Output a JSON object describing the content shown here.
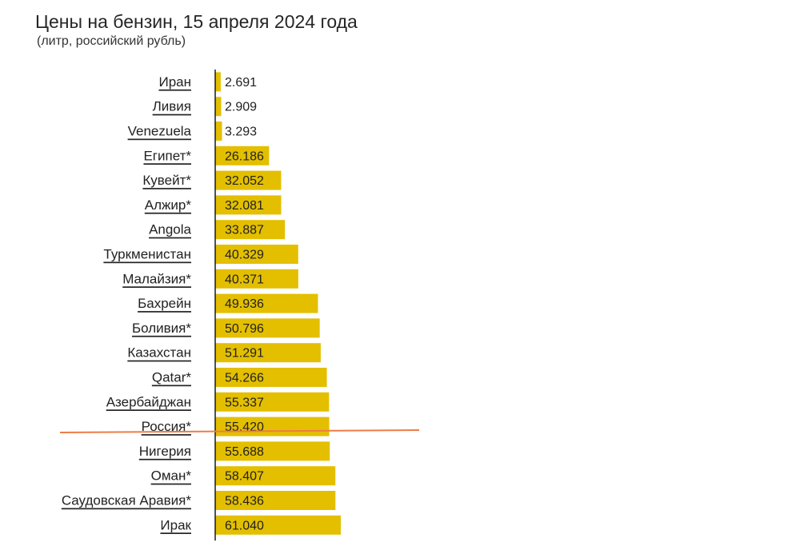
{
  "chart_data": {
    "type": "bar",
    "orientation": "horizontal",
    "title": "Цены на бензин, 15 апреля 2024 года",
    "subtitle": "(литр, российский рубль)",
    "categories": [
      "Иран",
      "Ливия",
      "Venezuela",
      "Египет*",
      "Кувейт*",
      "Алжир*",
      "Angola",
      "Туркменистан",
      "Малайзия*",
      "Бахрейн",
      "Боливия*",
      "Казахстан",
      "Qatar*",
      "Азербайджан",
      "Россия*",
      "Нигерия",
      "Оман*",
      "Саудовская Аравия*",
      "Ирак"
    ],
    "values": [
      2.691,
      2.909,
      3.293,
      26.186,
      32.052,
      32.081,
      33.887,
      40.329,
      40.371,
      49.936,
      50.796,
      51.291,
      54.266,
      55.337,
      55.42,
      55.688,
      58.407,
      58.436,
      61.04
    ],
    "value_labels": [
      "2.691",
      "2.909",
      "3.293",
      "26.186",
      "32.052",
      "32.081",
      "33.887",
      "40.329",
      "40.371",
      "49.936",
      "50.796",
      "51.291",
      "54.266",
      "55.337",
      "55.420",
      "55.688",
      "58.407",
      "58.436",
      "61.040"
    ],
    "xlim": [
      0,
      61.04
    ],
    "grid": false,
    "legend": "none",
    "bar_color": "#e3bf00",
    "highlight_line_color": "#ee7c45",
    "highlight_after_category": "Россия*"
  }
}
